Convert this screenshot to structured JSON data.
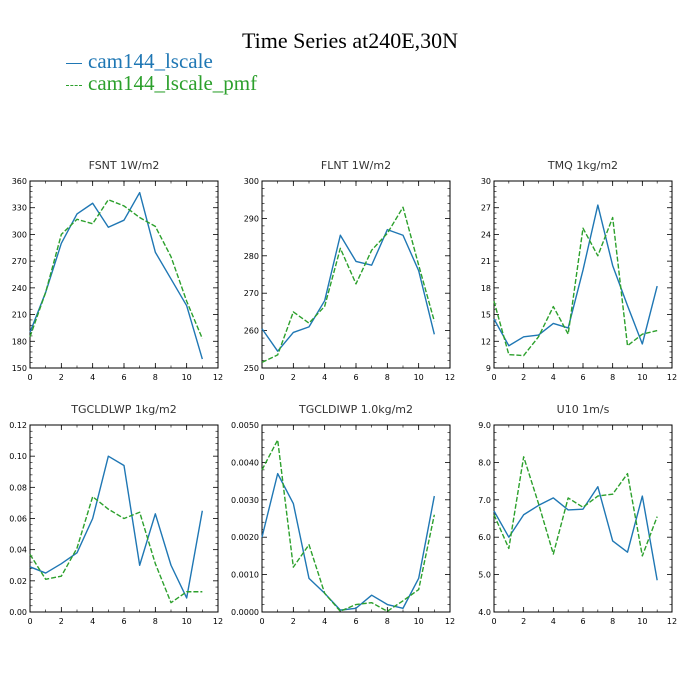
{
  "title": "Time Series at240E,30N",
  "legend": [
    {
      "label": "cam144_lscale",
      "color": "#1f77b4",
      "dash": false
    },
    {
      "label": "cam144_lscale_pmf",
      "color": "#2ca02c",
      "dash": true
    }
  ],
  "chart_data": [
    {
      "type": "line",
      "title": "FSNT   1W/m2",
      "x": [
        0,
        1,
        2,
        3,
        4,
        5,
        6,
        7,
        8,
        9,
        10,
        11
      ],
      "xlim": [
        0,
        12
      ],
      "xticks": [
        "0",
        "2",
        "4",
        "6",
        "8",
        "10",
        "12"
      ],
      "ylim": [
        150,
        360
      ],
      "yticks": [
        "150",
        "180",
        "210",
        "240",
        "270",
        "300",
        "330",
        "360"
      ],
      "series": [
        {
          "name": "cam144_lscale",
          "values": [
            190,
            235,
            290,
            323,
            335,
            308,
            316,
            347,
            280,
            250,
            220,
            160
          ]
        },
        {
          "name": "cam144_lscale_pmf",
          "values": [
            185,
            235,
            300,
            317,
            312,
            339,
            332,
            319,
            309,
            275,
            225,
            183
          ]
        }
      ]
    },
    {
      "type": "line",
      "title": "FLNT   1W/m2",
      "x": [
        0,
        1,
        2,
        3,
        4,
        5,
        6,
        7,
        8,
        9,
        10,
        11
      ],
      "xlim": [
        0,
        12
      ],
      "xticks": [
        "0",
        "2",
        "4",
        "6",
        "8",
        "10",
        "12"
      ],
      "ylim": [
        250,
        300
      ],
      "yticks": [
        "250",
        "260",
        "270",
        "280",
        "290",
        "300"
      ],
      "series": [
        {
          "name": "cam144_lscale",
          "values": [
            260.5,
            254.5,
            259.5,
            261,
            268,
            285.5,
            278.5,
            277.5,
            287,
            285.5,
            276,
            259
          ]
        },
        {
          "name": "cam144_lscale_pmf",
          "values": [
            251.5,
            253.5,
            265,
            262,
            266.5,
            282,
            272.5,
            281.5,
            286,
            293,
            277.5,
            262.5
          ]
        }
      ]
    },
    {
      "type": "line",
      "title": "TMQ   1kg/m2",
      "x": [
        0,
        1,
        2,
        3,
        4,
        5,
        6,
        7,
        8,
        9,
        10,
        11
      ],
      "xlim": [
        0,
        12
      ],
      "xticks": [
        "0",
        "2",
        "4",
        "6",
        "8",
        "10",
        "12"
      ],
      "ylim": [
        9,
        30
      ],
      "yticks": [
        "9",
        "12",
        "15",
        "18",
        "21",
        "24",
        "27",
        "30"
      ],
      "series": [
        {
          "name": "cam144_lscale",
          "values": [
            14.5,
            11.5,
            12.5,
            12.7,
            14,
            13.5,
            20,
            27.3,
            20.5,
            16,
            11.7,
            18.2
          ]
        },
        {
          "name": "cam144_lscale_pmf",
          "values": [
            16.5,
            10.5,
            10.4,
            12.5,
            15.9,
            12.8,
            24.7,
            21.6,
            25.9,
            11.5,
            12.8,
            13.2
          ]
        }
      ]
    },
    {
      "type": "line",
      "title": "TGCLDLWP   1kg/m2",
      "x": [
        0,
        1,
        2,
        3,
        4,
        5,
        6,
        7,
        8,
        9,
        10,
        11
      ],
      "xlim": [
        0,
        12
      ],
      "xticks": [
        "0",
        "2",
        "4",
        "6",
        "8",
        "10",
        "12"
      ],
      "ylim": [
        0,
        0.12
      ],
      "yticks": [
        "0.00",
        "0.02",
        "0.04",
        "0.06",
        "0.08",
        "0.10",
        "0.12"
      ],
      "series": [
        {
          "name": "cam144_lscale",
          "values": [
            0.029,
            0.025,
            0.031,
            0.038,
            0.06,
            0.1,
            0.094,
            0.03,
            0.063,
            0.03,
            0.009,
            0.065
          ]
        },
        {
          "name": "cam144_lscale_pmf",
          "values": [
            0.037,
            0.021,
            0.023,
            0.041,
            0.074,
            0.066,
            0.06,
            0.064,
            0.031,
            0.006,
            0.013,
            0.013
          ]
        }
      ]
    },
    {
      "type": "line",
      "title": "TGCLDIWP   1.0kg/m2",
      "x": [
        0,
        1,
        2,
        3,
        4,
        5,
        6,
        7,
        8,
        9,
        10,
        11
      ],
      "xlim": [
        0,
        12
      ],
      "xticks": [
        "0",
        "2",
        "4",
        "6",
        "8",
        "10",
        "12"
      ],
      "ylim": [
        0,
        0.005
      ],
      "yticks": [
        "0.0000",
        "0.0010",
        "0.0020",
        "0.0030",
        "0.0040",
        "0.0050"
      ],
      "series": [
        {
          "name": "cam144_lscale",
          "values": [
            0.002,
            0.0037,
            0.0029,
            0.0009,
            0.0005,
            5e-05,
            0.0001,
            0.00045,
            0.0002,
            0.0001,
            0.0009,
            0.0031
          ]
        },
        {
          "name": "cam144_lscale_pmf",
          "values": [
            0.0038,
            0.0046,
            0.0012,
            0.0018,
            0.0005,
            2e-05,
            0.0002,
            0.00025,
            2e-05,
            0.0003,
            0.0006,
            0.0026
          ]
        }
      ]
    },
    {
      "type": "line",
      "title": "U10   1m/s",
      "x": [
        0,
        1,
        2,
        3,
        4,
        5,
        6,
        7,
        8,
        9,
        10,
        11
      ],
      "xlim": [
        0,
        12
      ],
      "xticks": [
        "0",
        "2",
        "4",
        "6",
        "8",
        "10",
        "12"
      ],
      "ylim": [
        4,
        9
      ],
      "yticks": [
        "4.0",
        "5.0",
        "6.0",
        "7.0",
        "8.0",
        "9.0"
      ],
      "series": [
        {
          "name": "cam144_lscale",
          "values": [
            6.7,
            6,
            6.6,
            6.85,
            7.05,
            6.73,
            6.75,
            7.35,
            5.9,
            5.6,
            7.1,
            4.85
          ]
        },
        {
          "name": "cam144_lscale_pmf",
          "values": [
            6.6,
            5.7,
            8.15,
            6.9,
            5.55,
            7.05,
            6.8,
            7.1,
            7.15,
            7.7,
            5.5,
            6.55
          ]
        }
      ]
    }
  ]
}
